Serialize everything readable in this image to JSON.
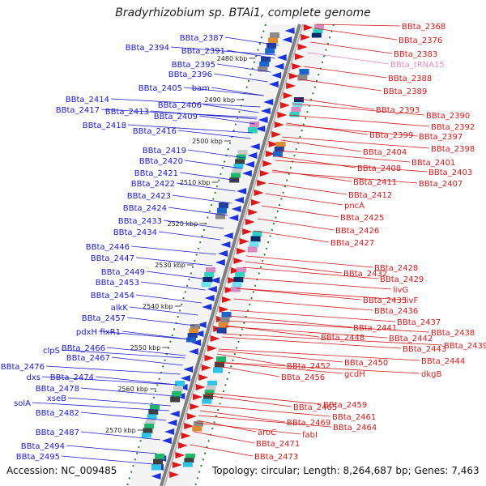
{
  "title": "Bradyrhizobium sp. BTAi1, complete genome",
  "footer": {
    "accession": "Accession: NC_009485",
    "topology": "Topology: circular; Length: 8,264,687 bp; Genes: 7,463"
  },
  "colors": {
    "left_label": "#1a1acc",
    "right_label": "#d41a1a",
    "rna_label": "#e98ac4",
    "backbone": "#808080",
    "ticks": "#208020"
  },
  "scale_ticks": [
    "2480 kbp",
    "2490 kbp",
    "2500 kbp",
    "2510 kbp",
    "2520 kbp",
    "2530 kbp",
    "2540 kbp",
    "2550 kbp",
    "2560 kbp",
    "2570 kbp"
  ],
  "left_labels": [
    "BBta_2387",
    "BBta_2394",
    "BBta_2391",
    "BBta_2395",
    "BBta_2396",
    "BBta_2405",
    "bam",
    "BBta_2414",
    "BBta_2406",
    "BBta_2417",
    "BBta_2413",
    "BBta_2409",
    "BBta_2418",
    "BBta_2416",
    "BBta_2419",
    "BBta_2420",
    "BBta_2421",
    "BBta_2422",
    "BBta_2423",
    "BBta_2424",
    "BBta_2433",
    "BBta_2434",
    "BBta_2446",
    "BBta_2447",
    "BBta_2449",
    "BBta_2453",
    "BBta_2454",
    "alkK",
    "BBta_2457",
    "pdxH",
    "fixR1",
    "clpS",
    "BBta_2466",
    "BBta_2476",
    "BBta_2467",
    "dxs",
    "BBta_2474",
    "BBta_2478",
    "xseB",
    "solA",
    "BBta_2482",
    "BBta_2487",
    "BBta_2494",
    "BBta_2495"
  ],
  "right_labels": [
    "BBta_2368",
    "BBta_2376",
    "BBta_2383",
    "BBta_tRNA15",
    "BBta_2388",
    "BBta_2389",
    "BBta_2393",
    "BBta_2390",
    "BBta_2392",
    "BBta_2397",
    "BBta_2399",
    "BBta_2398",
    "BBta_2404",
    "BBta_2401",
    "BBta_2408",
    "BBta_2403",
    "BBta_2411",
    "BBta_2407",
    "BBta_2412",
    "pncA",
    "BBta_2425",
    "BBta_2426",
    "BBta_2427",
    "BBta_2428",
    "BBta_2432",
    "BBta_2429",
    "livG",
    "BBta_2435",
    "livF",
    "BBta_2436",
    "BBta_2437",
    "BBta_2441",
    "BBta_2438",
    "BBta_2442",
    "BBta_2448",
    "BBta_2443",
    "BBta_2439",
    "BBta_2444",
    "BBta_2452",
    "BBta_2450",
    "BBta_2456",
    "gcdH",
    "dkgB",
    "BBta_2459",
    "BBta_2465",
    "BBta_2461",
    "BBta_2469",
    "BBta_2464",
    "aroC",
    "fabI",
    "BBta_2471",
    "BBta_2473"
  ]
}
